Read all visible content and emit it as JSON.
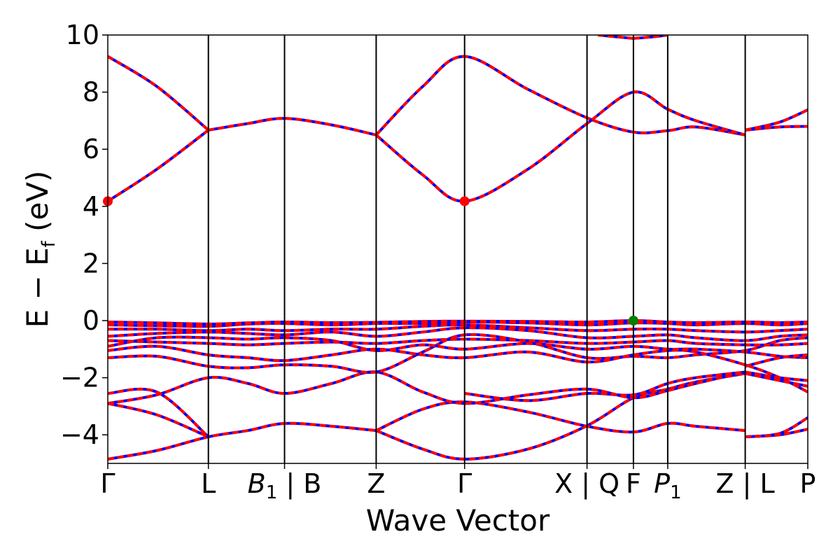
{
  "chart_data": {
    "type": "line",
    "title": "",
    "xlabel": "Wave Vector",
    "ylabel_parts": [
      "E − E",
      "f",
      " (eV)"
    ],
    "ylim": [
      -5,
      10
    ],
    "yticks": [
      -4,
      -2,
      0,
      2,
      4,
      6,
      8,
      10
    ],
    "ytick_labels": [
      "−4",
      "−2",
      "0",
      "2",
      "4",
      "6",
      "8",
      "10"
    ],
    "xlim": [
      0,
      1
    ],
    "kpoint_positions": [
      0,
      0.1437,
      0.2525,
      0.3834,
      0.5097,
      0.6846,
      0.7509,
      0.7999,
      0.9106,
      1
    ],
    "kpoint_labels": [
      {
        "label": "Γ"
      },
      {
        "label": "L"
      },
      {
        "label": "B",
        "sub": "1",
        "suffix": " | B"
      },
      {
        "label": "Z"
      },
      {
        "label": "Γ"
      },
      {
        "label": "X | Q"
      },
      {
        "label": "F"
      },
      {
        "label": "P",
        "sub": "1"
      },
      {
        "label": "Z | L"
      },
      {
        "label": "P"
      }
    ],
    "grid": false,
    "series_colors": {
      "solid": "#0000ff",
      "dashed": "#ff0000"
    },
    "band_segments": [
      [
        [
          0,
          9.25
        ],
        [
          0.07,
          8.2
        ],
        [
          0.1437,
          6.67
        ]
      ],
      [
        [
          0,
          4.18
        ],
        [
          0.07,
          5.3
        ],
        [
          0.1437,
          6.67
        ]
      ],
      [
        [
          0.1437,
          6.67
        ],
        [
          0.2,
          6.9
        ],
        [
          0.2525,
          7.08
        ],
        [
          0.32,
          6.85
        ],
        [
          0.3834,
          6.5
        ]
      ],
      [
        [
          0.3834,
          6.5
        ],
        [
          0.45,
          8.2
        ],
        [
          0.5097,
          9.25
        ],
        [
          0.6,
          8.1
        ],
        [
          0.6846,
          7.1
        ],
        [
          0.7509,
          6.6
        ],
        [
          0.7999,
          6.65
        ],
        [
          0.84,
          6.78
        ],
        [
          0.9106,
          6.5
        ]
      ],
      [
        [
          0.3834,
          6.5
        ],
        [
          0.45,
          5.1
        ],
        [
          0.5097,
          4.18
        ],
        [
          0.6,
          5.3
        ],
        [
          0.6846,
          6.9
        ],
        [
          0.7509,
          8.0
        ],
        [
          0.7999,
          7.4
        ],
        [
          0.84,
          7.0
        ],
        [
          0.9106,
          6.5
        ]
      ],
      [
        [
          0.7509,
          9.88
        ],
        [
          0.78,
          9.94
        ],
        [
          0.7999,
          10.0
        ]
      ],
      [
        [
          0.7,
          10.0
        ],
        [
          0.7509,
          9.88
        ]
      ],
      [
        [
          0.9106,
          6.67
        ],
        [
          0.96,
          6.78
        ],
        [
          1,
          6.8
        ]
      ],
      [
        [
          0.9106,
          6.67
        ],
        [
          0.96,
          6.95
        ],
        [
          1,
          7.38
        ]
      ],
      [
        [
          0,
          -4.85
        ],
        [
          0.07,
          -4.55
        ],
        [
          0.1437,
          -4.07
        ],
        [
          0.2,
          -3.85
        ],
        [
          0.2525,
          -3.6
        ],
        [
          0.32,
          -3.7
        ],
        [
          0.3834,
          -3.85
        ]
      ],
      [
        [
          0.3834,
          -3.85
        ],
        [
          0.45,
          -4.5
        ],
        [
          0.5097,
          -4.85
        ],
        [
          0.6,
          -4.5
        ],
        [
          0.6846,
          -3.68
        ],
        [
          0.7509,
          -2.7
        ],
        [
          0.7999,
          -2.4
        ],
        [
          0.84,
          -2.15
        ],
        [
          0.9106,
          -1.85
        ]
      ],
      [
        [
          0.3834,
          -3.85
        ],
        [
          0.45,
          -3.1
        ],
        [
          0.5097,
          -2.85
        ],
        [
          0.6,
          -3.2
        ],
        [
          0.6846,
          -3.7
        ],
        [
          0.7509,
          -3.9
        ],
        [
          0.7999,
          -3.6
        ],
        [
          0.84,
          -3.7
        ],
        [
          0.9106,
          -3.85
        ]
      ],
      [
        [
          0,
          -2.9
        ],
        [
          0.07,
          -2.6
        ],
        [
          0.1437,
          -2.0
        ],
        [
          0.2,
          -2.2
        ],
        [
          0.2525,
          -2.55
        ],
        [
          0.32,
          -2.2
        ],
        [
          0.3834,
          -1.8
        ],
        [
          0.45,
          -2.5
        ],
        [
          0.5097,
          -2.9
        ],
        [
          0.6,
          -2.6
        ],
        [
          0.6846,
          -2.4
        ],
        [
          0.7509,
          -2.7
        ],
        [
          0.7999,
          -2.45
        ],
        [
          0.84,
          -2.2
        ],
        [
          0.9106,
          -1.8
        ]
      ],
      [
        [
          0,
          -2.55
        ],
        [
          0.07,
          -2.5
        ],
        [
          0.1437,
          -4.07
        ]
      ],
      [
        [
          0,
          -2.9
        ],
        [
          0.07,
          -3.3
        ],
        [
          0.1437,
          -4.07
        ]
      ],
      [
        [
          0.5097,
          -2.55
        ],
        [
          0.6,
          -2.8
        ],
        [
          0.6846,
          -2.55
        ],
        [
          0.7509,
          -2.6
        ],
        [
          0.7999,
          -2.2
        ],
        [
          0.84,
          -2.0
        ],
        [
          0.9106,
          -1.8
        ]
      ],
      [
        [
          0,
          -1.3
        ],
        [
          0.07,
          -1.25
        ],
        [
          0.1437,
          -1.6
        ],
        [
          0.2,
          -1.65
        ],
        [
          0.2525,
          -1.55
        ],
        [
          0.32,
          -1.6
        ],
        [
          0.3834,
          -1.8
        ],
        [
          0.45,
          -1.1
        ],
        [
          0.5097,
          -0.5
        ],
        [
          0.6,
          -0.75
        ],
        [
          0.6846,
          -1.3
        ],
        [
          0.7509,
          -1.25
        ],
        [
          0.7999,
          -1.3
        ],
        [
          0.84,
          -1.2
        ],
        [
          0.9106,
          -1.05
        ],
        [
          0.96,
          -0.7
        ],
        [
          1,
          -0.6
        ]
      ],
      [
        [
          0,
          -1.05
        ],
        [
          0.07,
          -0.9
        ],
        [
          0.1437,
          -1.2
        ],
        [
          0.2,
          -1.3
        ],
        [
          0.2525,
          -1.4
        ],
        [
          0.32,
          -1.2
        ],
        [
          0.3834,
          -1.0
        ],
        [
          0.45,
          -1.2
        ],
        [
          0.5097,
          -1.3
        ],
        [
          0.6,
          -1.1
        ],
        [
          0.6846,
          -1.45
        ],
        [
          0.7509,
          -1.2
        ],
        [
          0.7999,
          -1.05
        ],
        [
          0.84,
          -1.1
        ],
        [
          0.9106,
          -1.55
        ],
        [
          0.96,
          -2.0
        ],
        [
          1,
          -2.5
        ]
      ],
      [
        [
          0,
          -0.9
        ],
        [
          0.07,
          -0.6
        ],
        [
          0.1437,
          -0.6
        ],
        [
          0.2,
          -0.65
        ],
        [
          0.2525,
          -0.6
        ],
        [
          0.32,
          -0.7
        ],
        [
          0.3834,
          -1.05
        ],
        [
          0.45,
          -0.85
        ],
        [
          0.5097,
          -1.0
        ],
        [
          0.6,
          -0.8
        ],
        [
          0.6846,
          -1.0
        ],
        [
          0.7509,
          -0.9
        ],
        [
          0.7999,
          -1.0
        ],
        [
          0.84,
          -1.0
        ],
        [
          0.9106,
          -1.1
        ],
        [
          0.96,
          -1.25
        ],
        [
          1,
          -1.3
        ]
      ],
      [
        [
          0,
          -0.55
        ],
        [
          0.07,
          -0.45
        ],
        [
          0.1437,
          -0.4
        ],
        [
          0.2,
          -0.45
        ],
        [
          0.2525,
          -0.5
        ],
        [
          0.32,
          -0.4
        ],
        [
          0.3834,
          -0.55
        ],
        [
          0.45,
          -0.4
        ],
        [
          0.5097,
          -0.25
        ],
        [
          0.6,
          -0.35
        ],
        [
          0.6846,
          -0.6
        ],
        [
          0.7509,
          -0.55
        ],
        [
          0.7999,
          -0.5
        ],
        [
          0.84,
          -0.6
        ],
        [
          0.9106,
          -0.7
        ],
        [
          0.96,
          -0.55
        ],
        [
          1,
          -0.5
        ]
      ],
      [
        [
          0,
          -0.3
        ],
        [
          0.07,
          -0.3
        ],
        [
          0.1437,
          -0.35
        ],
        [
          0.2,
          -0.3
        ],
        [
          0.2525,
          -0.35
        ],
        [
          0.32,
          -0.3
        ],
        [
          0.3834,
          -0.3
        ],
        [
          0.45,
          -0.2
        ],
        [
          0.5097,
          -0.15
        ],
        [
          0.6,
          -0.25
        ],
        [
          0.6846,
          -0.35
        ],
        [
          0.7509,
          -0.3
        ],
        [
          0.7999,
          -0.3
        ],
        [
          0.84,
          -0.35
        ],
        [
          0.9106,
          -0.4
        ],
        [
          0.96,
          -0.35
        ],
        [
          1,
          -0.3
        ]
      ],
      [
        [
          0,
          -0.15
        ],
        [
          0.07,
          -0.18
        ],
        [
          0.1437,
          -0.2
        ],
        [
          0.2,
          -0.12
        ],
        [
          0.2525,
          -0.1
        ],
        [
          0.32,
          -0.15
        ],
        [
          0.3834,
          -0.1
        ],
        [
          0.45,
          -0.1
        ],
        [
          0.5097,
          -0.05
        ],
        [
          0.6,
          -0.08
        ],
        [
          0.6846,
          -0.15
        ],
        [
          0.7509,
          -0.08
        ],
        [
          0.7999,
          -0.1
        ],
        [
          0.84,
          -0.15
        ],
        [
          0.9106,
          -0.1
        ],
        [
          0.96,
          -0.15
        ],
        [
          1,
          -0.1
        ]
      ],
      [
        [
          0,
          -0.05
        ],
        [
          0.07,
          -0.08
        ],
        [
          0.1437,
          -0.12
        ],
        [
          0.2,
          -0.08
        ],
        [
          0.2525,
          -0.05
        ],
        [
          0.32,
          -0.07
        ],
        [
          0.3834,
          -0.06
        ],
        [
          0.45,
          -0.03
        ],
        [
          0.5097,
          -0.02
        ],
        [
          0.6,
          -0.03
        ],
        [
          0.6846,
          -0.05
        ],
        [
          0.7509,
          0.0
        ],
        [
          0.7999,
          -0.05
        ],
        [
          0.84,
          -0.07
        ],
        [
          0.9106,
          -0.05
        ],
        [
          0.96,
          -0.07
        ],
        [
          1,
          -0.05
        ]
      ],
      [
        [
          0,
          -0.7
        ],
        [
          0.07,
          -0.75
        ],
        [
          0.1437,
          -0.8
        ],
        [
          0.2,
          -0.85
        ],
        [
          0.2525,
          -0.8
        ],
        [
          0.32,
          -0.75
        ],
        [
          0.3834,
          -0.8
        ],
        [
          0.45,
          -0.7
        ],
        [
          0.5097,
          -0.65
        ],
        [
          0.6,
          -0.7
        ],
        [
          0.6846,
          -0.8
        ],
        [
          0.7509,
          -0.75
        ],
        [
          0.7999,
          -0.7
        ],
        [
          0.84,
          -0.8
        ],
        [
          0.9106,
          -0.85
        ],
        [
          0.96,
          -0.85
        ],
        [
          1,
          -0.8
        ]
      ],
      [
        [
          0.9106,
          -1.6
        ],
        [
          0.96,
          -1.3
        ],
        [
          1,
          -1.2
        ]
      ],
      [
        [
          0.9106,
          -4.07
        ],
        [
          0.96,
          -3.95
        ],
        [
          1,
          -3.4
        ]
      ],
      [
        [
          0.9106,
          -4.07
        ],
        [
          0.96,
          -4.0
        ],
        [
          1,
          -3.8
        ]
      ],
      [
        [
          0.9106,
          -1.85
        ],
        [
          0.96,
          -2.1
        ],
        [
          1,
          -2.3
        ]
      ],
      [
        [
          0.9106,
          -1.8
        ],
        [
          0.96,
          -2.0
        ],
        [
          1,
          -2.1
        ]
      ]
    ],
    "markers": [
      {
        "x": 0,
        "y": 4.18,
        "color": "#ff0000"
      },
      {
        "x": 0.5097,
        "y": 4.18,
        "color": "#ff0000"
      },
      {
        "x": 0.7509,
        "y": 0.0,
        "color": "#008000"
      }
    ]
  }
}
